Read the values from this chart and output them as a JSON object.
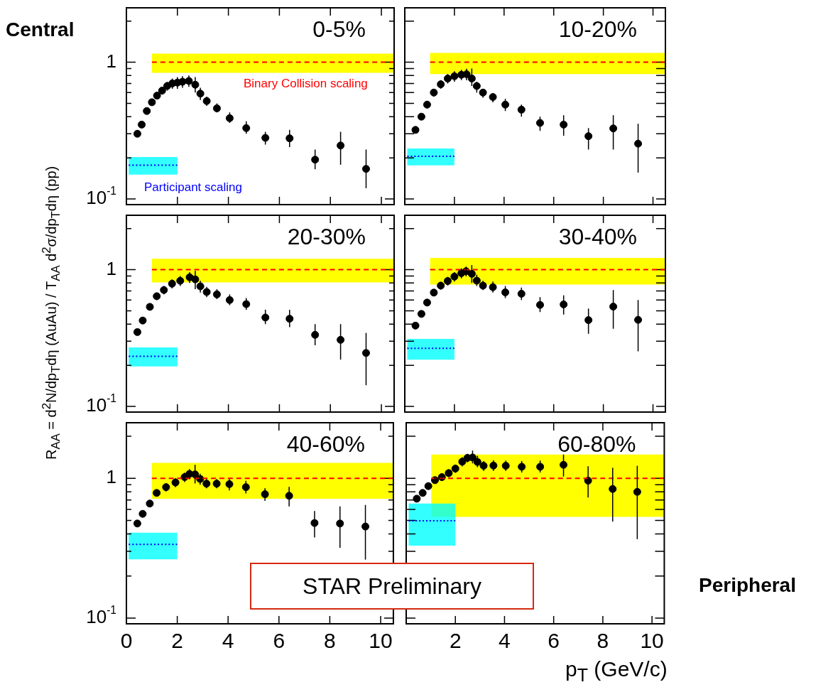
{
  "chart_data": [
    {
      "type": "scatter",
      "title": "0-5%",
      "xlim": [
        0,
        10.5
      ],
      "ylim": [
        0.091,
        2.5
      ],
      "log": "y",
      "grid": false,
      "tick_labels": "y",
      "xticks": [
        0,
        2,
        4,
        6,
        8,
        10
      ],
      "yticks": [
        {
          "value": 0.1,
          "label": "10$^{-1}$"
        },
        {
          "value": 0.2,
          "label": null
        },
        {
          "value": 0.3,
          "label": null
        },
        {
          "value": 0.4,
          "label": null
        },
        {
          "value": 0.5,
          "label": null
        },
        {
          "value": 0.6,
          "label": null
        },
        {
          "value": 0.7,
          "label": null
        },
        {
          "value": 0.8,
          "label": null
        },
        {
          "value": 0.9,
          "label": null
        },
        {
          "value": 1,
          "label": "1"
        },
        {
          "value": 2,
          "label": null
        }
      ],
      "annotations": [
        "Central",
        "Binary Collision scaling",
        "Participant scaling"
      ],
      "series": [
        {
          "marker": "circle",
          "color": "#000000",
          "x": [
            0.43,
            0.6,
            0.8,
            1.0,
            1.2,
            1.4,
            1.6,
            1.8,
            2.0,
            2.2,
            2.45,
            2.7,
            2.9,
            3.15,
            3.55,
            4.05,
            4.7,
            5.45,
            6.4,
            7.4,
            8.4,
            9.4
          ],
          "values": [
            0.3,
            0.35,
            0.44,
            0.51,
            0.57,
            0.62,
            0.67,
            0.7,
            0.71,
            0.72,
            0.73,
            0.685,
            0.59,
            0.52,
            0.46,
            0.39,
            0.33,
            0.28,
            0.278,
            0.194,
            0.246,
            0.166
          ],
          "errors": [
            0.01,
            0.01,
            0.02,
            0.02,
            0.03,
            0.04,
            0.05,
            0.06,
            0.07,
            0.07,
            0.07,
            [
              0.6,
              0.78
            ],
            [
              0.53,
              0.65
            ],
            [
              0.48,
              0.56
            ],
            [
              0.43,
              0.5
            ],
            [
              0.36,
              0.43
            ],
            [
              0.3,
              0.37
            ],
            [
              0.25,
              0.31
            ],
            [
              0.24,
              0.32
            ],
            [
              0.165,
              0.23
            ],
            [
              0.178,
              0.31
            ],
            [
              0.12,
              0.23
            ]
          ]
        },
        {
          "type": "line",
          "line_style": "dashed",
          "color": "#ff0000",
          "x": [
            1,
            10.5
          ],
          "values": [
            1,
            1
          ],
          "lower": [
            0.836,
            0.836
          ],
          "upper": [
            1.156,
            1.156
          ]
        },
        {
          "type": "line",
          "line_style": "dotted",
          "color": "#0000ff",
          "x": [
            0.09,
            2
          ],
          "values": [
            0.177,
            0.177
          ],
          "lower": [
            0.151,
            0.151
          ],
          "upper": [
            0.203,
            0.203
          ]
        }
      ]
    },
    {
      "type": "scatter",
      "title": "10-20%",
      "xlim": [
        0,
        10.5
      ],
      "ylim": [
        0.091,
        2.5
      ],
      "log": "y",
      "grid": false,
      "tick_labels": false,
      "xticks": [
        0,
        2,
        4,
        6,
        8,
        10
      ],
      "yticks": [
        0.1,
        0.2,
        0.3,
        0.4,
        0.5,
        0.6,
        0.7,
        0.8,
        0.9,
        1,
        2
      ],
      "series": [
        {
          "marker": "circle",
          "color": "#000000",
          "x": [
            0.43,
            0.67,
            0.9,
            1.17,
            1.45,
            1.73,
            2.0,
            2.28,
            2.49,
            2.7,
            2.9,
            3.15,
            3.55,
            4.05,
            4.7,
            5.45,
            6.4,
            7.4,
            8.4,
            9.4
          ],
          "values": [
            0.32,
            0.4,
            0.49,
            0.6,
            0.69,
            0.76,
            0.79,
            0.81,
            0.817,
            0.76,
            0.67,
            0.6,
            0.557,
            0.49,
            0.45,
            0.36,
            0.35,
            0.288,
            0.328,
            0.254
          ],
          "errors": [
            0.01,
            0.02,
            0.03,
            0.04,
            0.05,
            0.06,
            0.07,
            0.07,
            0.08,
            [
              0.67,
              0.9
            ],
            [
              0.6,
              0.72
            ],
            [
              0.55,
              0.64
            ],
            [
              0.51,
              0.59
            ],
            [
              0.44,
              0.54
            ],
            [
              0.4,
              0.49
            ],
            [
              0.315,
              0.4
            ],
            [
              0.29,
              0.41
            ],
            [
              0.23,
              0.33
            ],
            [
              0.23,
              0.41
            ],
            [
              0.156,
              0.355
            ]
          ]
        },
        {
          "type": "line",
          "line_style": "dashed",
          "color": "#ff0000",
          "x": [
            1.02,
            10.5
          ],
          "values": [
            1,
            1
          ],
          "lower": [
            0.82,
            0.82
          ],
          "upper": [
            1.17,
            1.17
          ]
        },
        {
          "type": "line",
          "line_style": "dotted",
          "color": "#0000ff",
          "x": [
            0.1,
            2
          ],
          "values": [
            0.205,
            0.205
          ],
          "lower": [
            0.176,
            0.176
          ],
          "upper": [
            0.234,
            0.234
          ]
        }
      ]
    },
    {
      "type": "scatter",
      "title": "20-30%",
      "ylabel": "R$_{AA}$ = d$^{2}$N/dp$_{T}$dη (AuAu) / T$_{AA}$ d$^{2}$σ/dp$_{T}$dη (pp)",
      "xlim": [
        0,
        10.5
      ],
      "ylim": [
        0.091,
        2.5
      ],
      "log": "y",
      "grid": false,
      "tick_labels": "y",
      "xticks": [
        0,
        2,
        4,
        6,
        8,
        10
      ],
      "yticks": [
        {
          "value": 0.1,
          "label": "10$^{-1}$"
        },
        {
          "value": 0.2,
          "label": null
        },
        {
          "value": 0.3,
          "label": null
        },
        {
          "value": 0.4,
          "label": null
        },
        {
          "value": 0.5,
          "label": null
        },
        {
          "value": 0.6,
          "label": null
        },
        {
          "value": 0.7,
          "label": null
        },
        {
          "value": 0.8,
          "label": null
        },
        {
          "value": 0.9,
          "label": null
        },
        {
          "value": 1,
          "label": "1"
        },
        {
          "value": 2,
          "label": null
        }
      ],
      "series": [
        {
          "marker": "circle",
          "color": "#000000",
          "x": [
            0.43,
            0.64,
            0.92,
            1.19,
            1.47,
            1.79,
            2.11,
            2.48,
            2.7,
            2.9,
            3.15,
            3.55,
            4.05,
            4.7,
            5.45,
            6.4,
            7.4,
            8.4,
            9.4
          ],
          "values": [
            0.35,
            0.425,
            0.535,
            0.64,
            0.71,
            0.79,
            0.83,
            0.88,
            0.85,
            0.756,
            0.687,
            0.66,
            0.6,
            0.56,
            0.447,
            0.438,
            0.334,
            0.307,
            0.246
          ],
          "errors": [
            0.01,
            0.02,
            0.03,
            0.04,
            0.05,
            0.06,
            0.07,
            0.08,
            [
              0.72,
              0.98
            ],
            [
              0.68,
              0.83
            ],
            [
              0.63,
              0.75
            ],
            [
              0.61,
              0.72
            ],
            [
              0.55,
              0.66
            ],
            [
              0.51,
              0.62
            ],
            [
              0.4,
              0.51
            ],
            [
              0.38,
              0.51
            ],
            [
              0.28,
              0.4
            ],
            [
              0.22,
              0.4
            ],
            [
              0.143,
              0.345
            ]
          ]
        },
        {
          "type": "line",
          "line_style": "dashed",
          "color": "#ff0000",
          "x": [
            1,
            10.5
          ],
          "values": [
            1,
            1
          ],
          "lower": [
            0.807,
            0.807
          ],
          "upper": [
            1.2,
            1.2
          ]
        },
        {
          "type": "line",
          "line_style": "dotted",
          "color": "#0000ff",
          "x": [
            0.09,
            2
          ],
          "values": [
            0.233,
            0.233
          ],
          "lower": [
            0.196,
            0.196
          ],
          "upper": [
            0.27,
            0.27
          ]
        }
      ]
    },
    {
      "type": "scatter",
      "title": "30-40%",
      "xlim": [
        0,
        10.5
      ],
      "ylim": [
        0.091,
        2.5
      ],
      "log": "y",
      "grid": false,
      "tick_labels": false,
      "xticks": [
        0,
        2,
        4,
        6,
        8,
        10
      ],
      "yticks": [
        0.1,
        0.2,
        0.3,
        0.4,
        0.5,
        0.6,
        0.7,
        0.8,
        0.9,
        1,
        2
      ],
      "series": [
        {
          "marker": "circle",
          "color": "#000000",
          "x": [
            0.43,
            0.67,
            0.9,
            1.17,
            1.45,
            1.73,
            2.0,
            2.28,
            2.47,
            2.7,
            2.9,
            3.15,
            3.55,
            4.05,
            4.7,
            5.45,
            6.4,
            7.4,
            8.4,
            9.4
          ],
          "values": [
            0.39,
            0.475,
            0.575,
            0.68,
            0.765,
            0.826,
            0.89,
            0.944,
            0.974,
            0.933,
            0.832,
            0.765,
            0.745,
            0.683,
            0.667,
            0.553,
            0.557,
            0.428,
            0.537,
            0.43
          ],
          "errors": [
            0.01,
            0.02,
            0.03,
            0.04,
            0.05,
            0.06,
            0.07,
            0.08,
            0.08,
            [
              0.8,
              1.08
            ],
            [
              0.76,
              0.92
            ],
            [
              0.71,
              0.83
            ],
            [
              0.68,
              0.82
            ],
            [
              0.62,
              0.76
            ],
            [
              0.6,
              0.74
            ],
            [
              0.49,
              0.63
            ],
            [
              0.47,
              0.65
            ],
            [
              0.34,
              0.52
            ],
            [
              0.37,
              0.71
            ],
            [
              0.253,
              0.6
            ]
          ]
        },
        {
          "type": "line",
          "line_style": "dashed",
          "color": "#ff0000",
          "x": [
            1.02,
            10.5
          ],
          "values": [
            1,
            1
          ],
          "lower": [
            0.78,
            0.78
          ],
          "upper": [
            1.22,
            1.22
          ]
        },
        {
          "type": "line",
          "line_style": "dotted",
          "color": "#0000ff",
          "x": [
            0.1,
            2
          ],
          "values": [
            0.266,
            0.266
          ],
          "lower": [
            0.22,
            0.22
          ],
          "upper": [
            0.312,
            0.312
          ]
        }
      ]
    },
    {
      "type": "scatter",
      "title": "40-60%",
      "xlim": [
        0,
        10.5
      ],
      "ylim": [
        0.091,
        2.5
      ],
      "log": "y",
      "grid": false,
      "xticks": [
        0,
        2,
        4,
        6,
        8,
        10
      ],
      "yticks": [
        {
          "value": 0.1,
          "label": "10$^{-1}$"
        },
        {
          "value": 0.2,
          "label": null
        },
        {
          "value": 0.3,
          "label": null
        },
        {
          "value": 0.4,
          "label": null
        },
        {
          "value": 0.5,
          "label": null
        },
        {
          "value": 0.6,
          "label": null
        },
        {
          "value": 0.7,
          "label": null
        },
        {
          "value": 0.8,
          "label": null
        },
        {
          "value": 0.9,
          "label": null
        },
        {
          "value": 1,
          "label": "1"
        },
        {
          "value": 2,
          "label": null
        }
      ],
      "annotations": [
        "STAR Preliminary"
      ],
      "series": [
        {
          "marker": "circle",
          "color": "#000000",
          "x": [
            0.43,
            0.64,
            0.92,
            1.19,
            1.56,
            1.93,
            2.29,
            2.48,
            2.7,
            2.9,
            3.15,
            3.55,
            4.05,
            4.7,
            5.45,
            6.4,
            7.4,
            8.4,
            9.4
          ],
          "values": [
            0.475,
            0.557,
            0.66,
            0.786,
            0.865,
            0.934,
            1.02,
            1.075,
            1.067,
            0.99,
            0.916,
            0.916,
            0.909,
            0.865,
            0.77,
            0.75,
            0.479,
            0.475,
            0.452
          ],
          "errors": [
            0.01,
            0.02,
            0.03,
            0.04,
            0.06,
            0.07,
            0.08,
            0.09,
            [
              0.92,
              1.25
            ],
            [
              0.9,
              1.08
            ],
            [
              0.85,
              0.99
            ],
            [
              0.85,
              0.99
            ],
            [
              0.82,
              0.99
            ],
            [
              0.78,
              0.96
            ],
            [
              0.69,
              0.85
            ],
            [
              0.63,
              0.87
            ],
            [
              0.377,
              0.584
            ],
            [
              0.318,
              0.63
            ],
            [
              0.262,
              0.645
            ]
          ]
        },
        {
          "type": "line",
          "line_style": "dashed",
          "color": "#ff0000",
          "x": [
            1,
            10.5
          ],
          "values": [
            1,
            1
          ],
          "lower": [
            0.715,
            0.715
          ],
          "upper": [
            1.29,
            1.29
          ]
        },
        {
          "type": "line",
          "line_style": "dotted",
          "color": "#0000ff",
          "x": [
            0.09,
            2
          ],
          "values": [
            0.337,
            0.337
          ],
          "lower": [
            0.263,
            0.263
          ],
          "upper": [
            0.408,
            0.408
          ]
        }
      ]
    },
    {
      "type": "scatter",
      "title": "60-80%",
      "xlabel": "p$_{T}$ (GeV/c)",
      "xlim": [
        0,
        10.5
      ],
      "ylim": [
        0.091,
        2.5
      ],
      "log": "y",
      "grid": false,
      "tick_labels": "x",
      "xticks": [
        {
          "value": 0,
          "label": null
        },
        2,
        4,
        6,
        8,
        10
      ],
      "yticks": [
        0.1,
        0.2,
        0.3,
        0.4,
        0.5,
        0.6,
        0.7,
        0.8,
        0.9,
        1,
        2
      ],
      "annotations": [
        "Peripheral"
      ],
      "series": [
        {
          "marker": "circle",
          "color": "#000000",
          "x": [
            0.43,
            0.67,
            0.9,
            1.17,
            1.45,
            1.73,
            2.0,
            2.28,
            2.49,
            2.7,
            2.9,
            3.15,
            3.55,
            4.05,
            4.7,
            5.45,
            6.4,
            7.4,
            8.4,
            9.4
          ],
          "values": [
            0.715,
            0.786,
            0.88,
            0.97,
            1.02,
            1.09,
            1.174,
            1.316,
            1.4,
            1.41,
            1.31,
            1.23,
            1.234,
            1.23,
            1.21,
            1.21,
            1.25,
            0.962,
            0.839,
            0.8
          ],
          "errors": [
            0.02,
            0.03,
            0.04,
            0.05,
            0.06,
            0.07,
            0.08,
            0.1,
            0.1,
            [
              1.28,
              1.58
            ],
            [
              1.2,
              1.45
            ],
            [
              1.13,
              1.33
            ],
            [
              1.13,
              1.35
            ],
            [
              1.13,
              1.34
            ],
            [
              1.1,
              1.33
            ],
            [
              1.1,
              1.34
            ],
            [
              1.03,
              1.48
            ],
            [
              0.73,
              1.22
            ],
            [
              0.49,
              1.19
            ],
            [
              0.367,
              1.23
            ]
          ]
        },
        {
          "type": "line",
          "line_style": "dashed",
          "color": "#ff0000",
          "x": [
            1.02,
            10.5
          ],
          "values": [
            1,
            1
          ],
          "lower": [
            0.53,
            0.53
          ],
          "upper": [
            1.48,
            1.48
          ]
        },
        {
          "type": "line",
          "line_style": "dotted",
          "color": "#0000ff",
          "x": [
            0.1,
            2
          ],
          "values": [
            0.497,
            0.497
          ],
          "lower": [
            0.33,
            0.33
          ],
          "upper": [
            0.66,
            0.66
          ]
        }
      ]
    }
  ]
}
